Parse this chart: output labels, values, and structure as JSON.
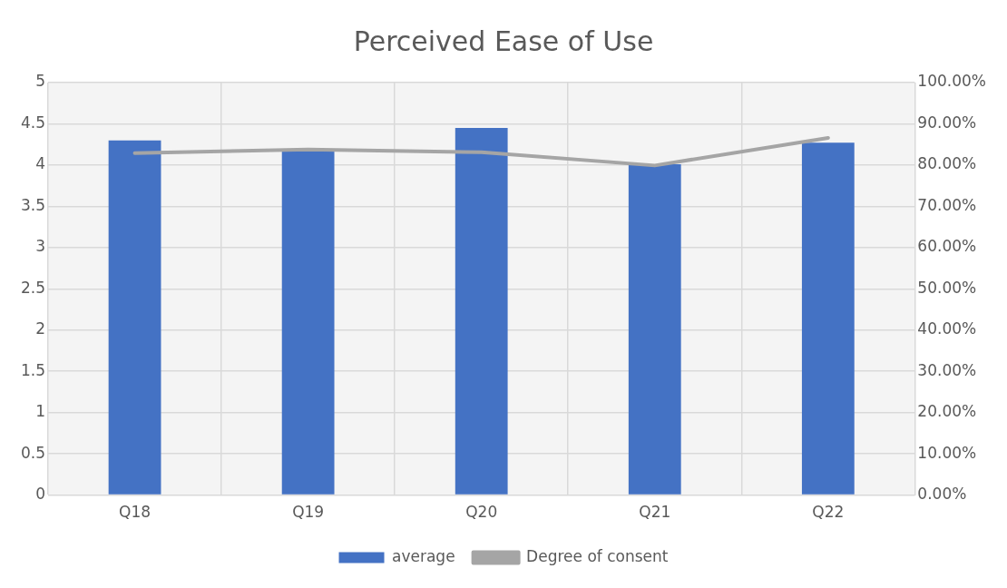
{
  "chart_data": {
    "type": "bar",
    "title": "Perceived Ease of Use",
    "categories": [
      "Q18",
      "Q19",
      "Q20",
      "Q21",
      "Q22"
    ],
    "series": [
      {
        "name": "average",
        "color": "#4472c4",
        "values": [
          4.3,
          4.17,
          4.45,
          4.01,
          4.27
        ]
      },
      {
        "name": "Degree of consent",
        "type": "line",
        "axis": "y2",
        "color": "#a5a5a5",
        "values": [
          82.9,
          83.8,
          83.1,
          79.9,
          86.6
        ]
      }
    ],
    "ylim": [
      0,
      5
    ],
    "yticks": [
      0,
      0.5,
      1,
      1.5,
      2,
      2.5,
      3,
      3.5,
      4,
      4.5,
      5
    ],
    "y2lim": [
      0,
      100
    ],
    "y2ticks": [
      {
        "value": 0,
        "label": "0.00%"
      },
      {
        "value": 10,
        "label": "10.00%"
      },
      {
        "value": 20,
        "label": "20.00%"
      },
      {
        "value": 30,
        "label": "30.00%"
      },
      {
        "value": 40,
        "label": "40.00%"
      },
      {
        "value": 50,
        "label": "50.00%"
      },
      {
        "value": 60,
        "label": "60.00%"
      },
      {
        "value": 70,
        "label": "70.00%"
      },
      {
        "value": 80,
        "label": "80.00%"
      },
      {
        "value": 90,
        "label": "90.00%"
      },
      {
        "value": 100,
        "label": "100.00%"
      }
    ],
    "grid": true,
    "legend": "bottom",
    "marker": "none",
    "line_style": "solid"
  }
}
